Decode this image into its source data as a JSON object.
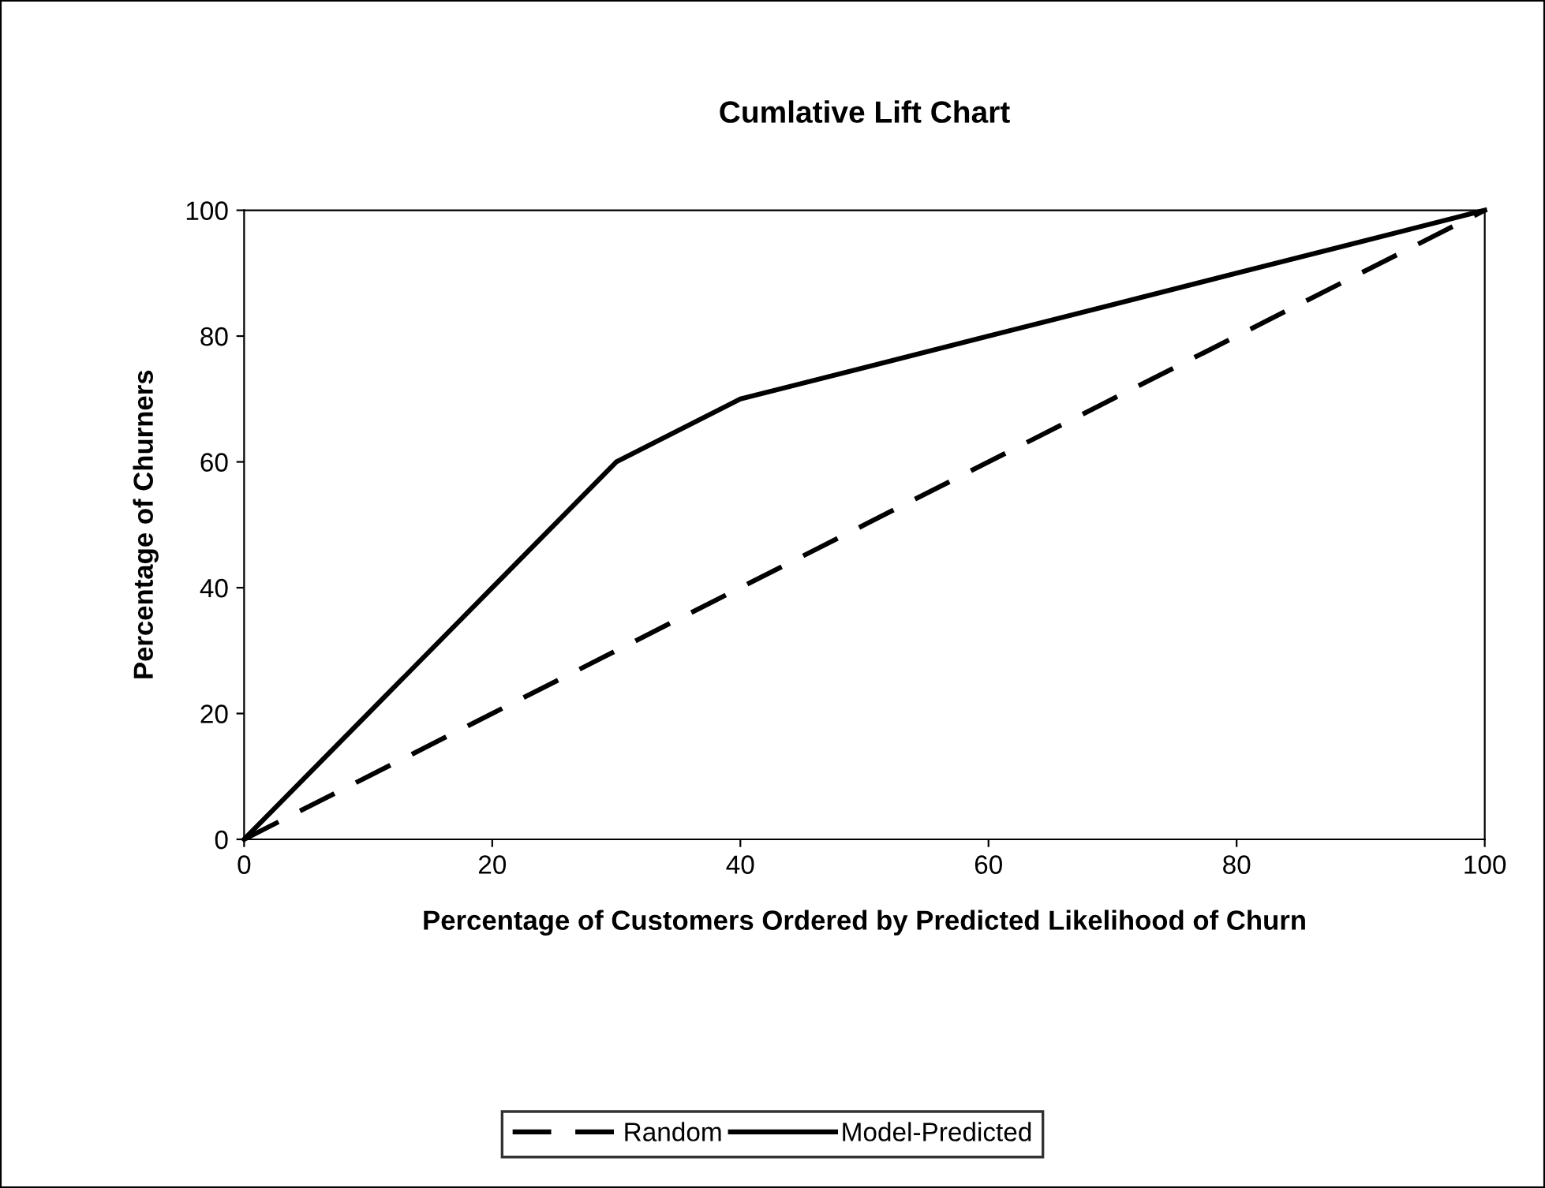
{
  "chart_data": {
    "type": "line",
    "title": "Cumlative Lift Chart",
    "xlabel": "Percentage of Customers Ordered by Predicted Likelihood of Churn",
    "ylabel": "Percentage of Churners",
    "x": [
      0,
      10,
      20,
      30,
      40,
      50,
      60,
      70,
      80,
      90,
      100
    ],
    "series": [
      {
        "name": "Random",
        "color": "#000000",
        "line_style": "dashed",
        "values": [
          0,
          10,
          20,
          30,
          40,
          50,
          60,
          70,
          80,
          90,
          100
        ]
      },
      {
        "name": "Model-Predicted",
        "color": "#000000",
        "line_style": "solid",
        "values": [
          0,
          20,
          40,
          60,
          70,
          75,
          80,
          85,
          90,
          95,
          100
        ]
      }
    ],
    "xlim": [
      0,
      100
    ],
    "xticks": [
      0,
      20,
      40,
      60,
      80,
      100
    ],
    "ylim": [
      0,
      100
    ],
    "yticks": [
      0,
      20,
      40,
      60,
      80,
      100
    ],
    "grid": false,
    "legend": "bottom",
    "marker": "none"
  }
}
